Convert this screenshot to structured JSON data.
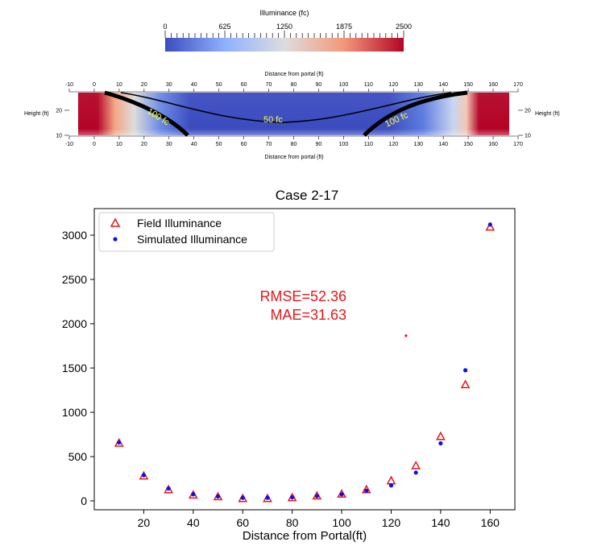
{
  "colorbar": {
    "title": "Illuminance (fc)",
    "tick_labels": [
      "0",
      "625",
      "1250",
      "1875",
      "2500"
    ],
    "tick_values": [
      0,
      625,
      1250,
      1875,
      2500
    ],
    "min": 0,
    "max": 2500,
    "colors": [
      "#3b4cc0",
      "#8fb1fe",
      "#dddddd",
      "#f4987a",
      "#b40426"
    ]
  },
  "heatmap": {
    "top_axis_label": "Distance from portal (ft)",
    "bottom_axis_label": "Distance from portal (ft)",
    "x_ticks": [
      -10,
      0,
      10,
      20,
      30,
      40,
      50,
      60,
      70,
      80,
      90,
      100,
      110,
      120,
      130,
      140,
      150,
      160,
      170
    ],
    "left_ylabel": "Height (ft)",
    "right_ylabel": "Height (ft)",
    "y_ticks": [
      20,
      10
    ],
    "contour_labels": [
      "100 fc",
      "50 fc",
      "100 fc"
    ]
  },
  "chart_data": {
    "type": "scatter",
    "title": "Case 2-17",
    "xlabel": "Distance from Portal(ft)",
    "ylabel": "",
    "xlim": [
      0,
      170
    ],
    "ylim": [
      -100,
      3300
    ],
    "x_ticks": [
      20,
      40,
      60,
      80,
      100,
      120,
      140,
      160
    ],
    "y_ticks": [
      0,
      500,
      1000,
      1500,
      2000,
      2500,
      3000
    ],
    "legend_position": "top-left",
    "series": [
      {
        "name": "Field Illuminance",
        "marker": "triangle-open",
        "color": "#e8161b",
        "x": [
          10,
          20,
          30,
          40,
          50,
          60,
          70,
          80,
          90,
          100,
          110,
          120,
          130,
          140,
          150,
          160
        ],
        "y": [
          650,
          280,
          125,
          65,
          45,
          25,
          25,
          35,
          55,
          75,
          125,
          225,
          395,
          725,
          1310,
          3090
        ]
      },
      {
        "name": "Simulated Illuminance",
        "marker": "dot",
        "color": "#1010e6",
        "x": [
          10,
          20,
          30,
          40,
          50,
          60,
          70,
          80,
          90,
          100,
          110,
          120,
          130,
          140,
          150,
          160
        ],
        "y": [
          660,
          290,
          140,
          75,
          50,
          35,
          35,
          40,
          55,
          75,
          115,
          175,
          320,
          650,
          1475,
          3120
        ]
      }
    ],
    "stray_point": {
      "x": 126,
      "y": 1865,
      "color": "#e8161b"
    },
    "annotations": [
      "RMSE=52.36",
      "MAE=31.63"
    ]
  }
}
